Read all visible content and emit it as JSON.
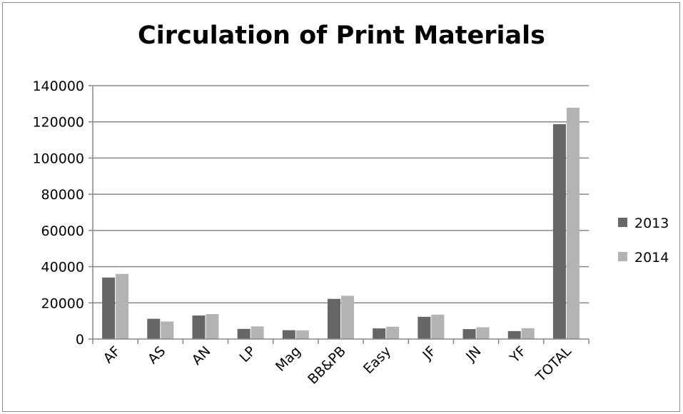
{
  "chart_data": {
    "type": "bar",
    "title": "Circulation of Print Materials",
    "xlabel": "",
    "ylabel": "",
    "categories": [
      "AF",
      "AS",
      "AN",
      "LP",
      "Mag",
      "BB&PB",
      "Easy",
      "JF",
      "JN",
      "YF",
      "TOTAL"
    ],
    "series": [
      {
        "name": "2013",
        "color": "#666666",
        "values": [
          34000,
          11200,
          13000,
          5600,
          4900,
          22200,
          5900,
          12300,
          5500,
          4400,
          118700
        ]
      },
      {
        "name": "2014",
        "color": "#b3b3b3",
        "values": [
          36000,
          9700,
          13800,
          7000,
          4800,
          23900,
          6800,
          13500,
          6500,
          6000,
          127800
        ]
      }
    ],
    "ylim": [
      0,
      140000
    ],
    "yticks": [
      "0",
      "20000",
      "40000",
      "60000",
      "80000",
      "100000",
      "120000",
      "140000"
    ],
    "grid": true,
    "legend_position": "right"
  }
}
